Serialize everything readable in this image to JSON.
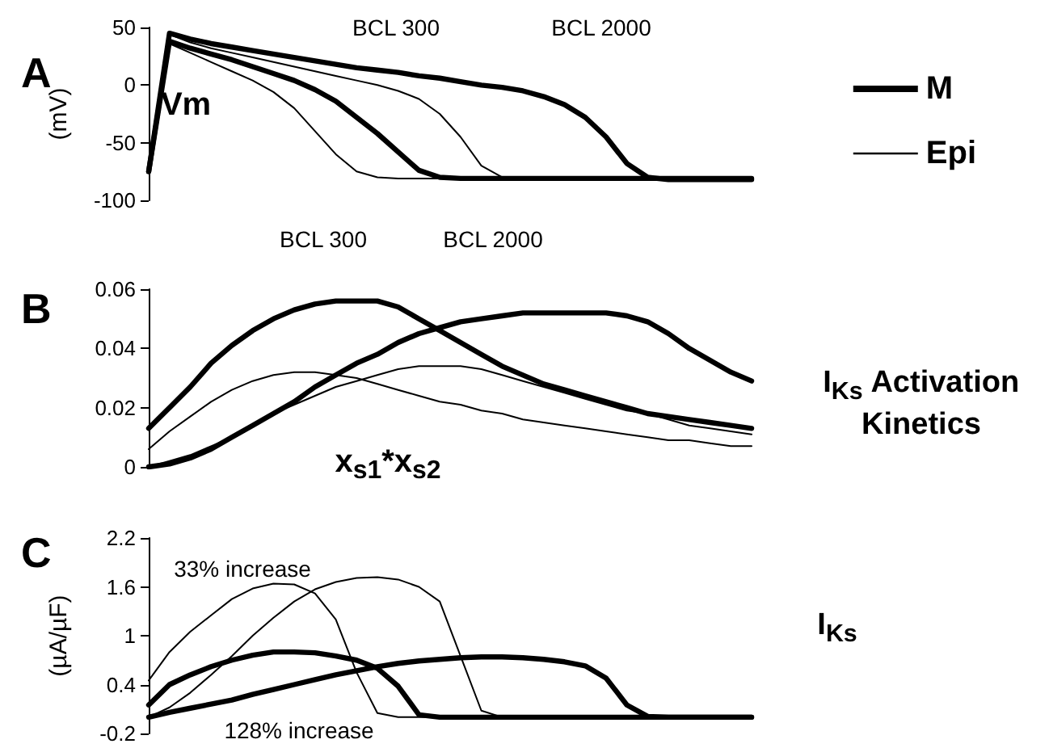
{
  "chart_data": [
    {
      "type": "line",
      "title": "A",
      "ylabel": "(mV)",
      "annotations": [
        "Vm",
        "BCL 300",
        "BCL 2000",
        "BCL 300",
        "BCL 2000"
      ],
      "categories": [
        null,
        null,
        null,
        null,
        null,
        null,
        null,
        null,
        null,
        null,
        null,
        null,
        null,
        null,
        null,
        null,
        null,
        null,
        null,
        null,
        null,
        null,
        null,
        null,
        null,
        null,
        null,
        null,
        null,
        null
      ],
      "ylim": [
        -100,
        50
      ],
      "yticks": [
        -100,
        -50,
        0,
        50
      ],
      "legend": "right",
      "marker": "none",
      "line_style": "solid",
      "series": [
        {
          "name": "M",
          "color": "#000000",
          "values": [
            -75,
            38,
            32,
            27,
            22,
            16,
            10,
            4,
            -4,
            -14,
            -28,
            -42,
            -58,
            -74,
            -80,
            -81,
            -81,
            -81,
            -81,
            -81,
            -81,
            -81,
            -81,
            -81,
            -81,
            -81,
            -81,
            -81,
            -81,
            -81
          ]
        },
        {
          "color": "#000000",
          "values": [
            -75,
            45,
            40,
            36,
            33,
            30,
            27,
            24,
            21,
            18,
            15,
            13,
            11,
            8,
            6,
            3,
            0,
            -2,
            -5,
            -10,
            -17,
            -28,
            -45,
            -68,
            -80,
            -82,
            -82,
            -82,
            -82,
            -82
          ]
        },
        {
          "name": "Epi",
          "color": "#000000",
          "values": [
            -75,
            36,
            28,
            20,
            12,
            4,
            -6,
            -20,
            -40,
            -60,
            -75,
            -80,
            -81,
            -81,
            -81,
            -81,
            -81,
            -81,
            -81,
            -81,
            -81,
            -81,
            -81,
            -81,
            -81,
            -81,
            -81,
            -81,
            -81,
            -81
          ]
        },
        {
          "color": "#000000",
          "values": [
            -75,
            44,
            37,
            32,
            28,
            24,
            20,
            16,
            12,
            8,
            4,
            0,
            -5,
            -12,
            -25,
            -45,
            -70,
            -80,
            -81,
            -81,
            -81,
            -81,
            -81,
            -81,
            -81,
            -81,
            -81,
            -81,
            -81,
            -81
          ]
        }
      ]
    },
    {
      "type": "line",
      "title": "B",
      "annotations": [
        "x$_{s1}$*x$_{s2}$",
        "I$_{Ks}$ Activation Kinetics"
      ],
      "categories": [
        null,
        null,
        null,
        null,
        null,
        null,
        null,
        null,
        null,
        null,
        null,
        null,
        null,
        null,
        null,
        null,
        null,
        null,
        null,
        null,
        null,
        null,
        null,
        null,
        null,
        null,
        null,
        null,
        null,
        null
      ],
      "ylim": [
        0,
        0.06
      ],
      "yticks": [
        0,
        0.02,
        0.04,
        0.06
      ],
      "marker": "none",
      "line_style": "solid",
      "series": [
        {
          "color": "#000000",
          "values": [
            0.013,
            0.02,
            0.027,
            0.035,
            0.041,
            0.046,
            0.05,
            0.053,
            0.055,
            0.056,
            0.056,
            0.056,
            0.054,
            0.05,
            0.046,
            0.042,
            0.038,
            0.034,
            0.031,
            0.028,
            0.026,
            0.024,
            0.022,
            0.02,
            0.018,
            0.017,
            0.016,
            0.015,
            0.014,
            0.013
          ]
        },
        {
          "color": "#000000",
          "values": [
            0,
            0.001,
            0.003,
            0.006,
            0.01,
            0.014,
            0.018,
            0.022,
            0.027,
            0.031,
            0.035,
            0.038,
            0.042,
            0.045,
            0.047,
            0.049,
            0.05,
            0.051,
            0.052,
            0.052,
            0.052,
            0.052,
            0.052,
            0.051,
            0.049,
            0.045,
            0.04,
            0.036,
            0.032,
            0.029
          ]
        },
        {
          "color": "#000000",
          "values": [
            0.006,
            0.012,
            0.017,
            0.022,
            0.026,
            0.029,
            0.031,
            0.032,
            0.032,
            0.031,
            0.03,
            0.028,
            0.026,
            0.024,
            0.022,
            0.021,
            0.019,
            0.018,
            0.016,
            0.015,
            0.014,
            0.013,
            0.012,
            0.011,
            0.01,
            0.009,
            0.009,
            0.008,
            0.007,
            0.007
          ]
        },
        {
          "color": "#000000",
          "values": [
            0,
            0.002,
            0.004,
            0.007,
            0.01,
            0.014,
            0.018,
            0.021,
            0.024,
            0.027,
            0.029,
            0.031,
            0.033,
            0.034,
            0.034,
            0.034,
            0.033,
            0.031,
            0.029,
            0.027,
            0.025,
            0.023,
            0.021,
            0.019,
            0.018,
            0.016,
            0.014,
            0.013,
            0.012,
            0.011
          ]
        }
      ]
    },
    {
      "type": "line",
      "title": "C",
      "ylabel": "(µA/µF)",
      "annotations": [
        "33% increase",
        "128% increase",
        "I$_{Ks}$"
      ],
      "categories": [
        null,
        null,
        null,
        null,
        null,
        null,
        null,
        null,
        null,
        null,
        null,
        null,
        null,
        null,
        null,
        null,
        null,
        null,
        null,
        null,
        null,
        null,
        null,
        null,
        null,
        null,
        null,
        null,
        null,
        null
      ],
      "ylim": [
        -0.2,
        2.2
      ],
      "yticks": [
        -0.2,
        0.4,
        1,
        1.6,
        2.2
      ],
      "marker": "none",
      "line_style": "solid",
      "series": [
        {
          "color": "#000000",
          "values": [
            0.15,
            0.4,
            0.52,
            0.62,
            0.7,
            0.76,
            0.8,
            0.8,
            0.79,
            0.75,
            0.7,
            0.6,
            0.38,
            0.03,
            0,
            0,
            0,
            0,
            0,
            0,
            0,
            0,
            0,
            0,
            0,
            0,
            0,
            0,
            0,
            0
          ]
        },
        {
          "color": "#000000",
          "values": [
            0,
            0.06,
            0.11,
            0.16,
            0.21,
            0.28,
            0.34,
            0.4,
            0.46,
            0.52,
            0.57,
            0.62,
            0.66,
            0.69,
            0.71,
            0.73,
            0.74,
            0.74,
            0.73,
            0.71,
            0.68,
            0.63,
            0.48,
            0.15,
            0.01,
            0,
            0,
            0,
            0,
            0
          ]
        },
        {
          "color": "#000000",
          "values": [
            0.45,
            0.8,
            1.05,
            1.25,
            1.45,
            1.58,
            1.64,
            1.63,
            1.52,
            1.2,
            0.55,
            0.05,
            0,
            0,
            0,
            0,
            0,
            0,
            0,
            0,
            0,
            0,
            0,
            0,
            0,
            0,
            0,
            0,
            0,
            0
          ]
        },
        {
          "color": "#000000",
          "values": [
            0,
            0.12,
            0.3,
            0.52,
            0.75,
            1.0,
            1.22,
            1.42,
            1.57,
            1.66,
            1.71,
            1.72,
            1.69,
            1.6,
            1.42,
            0.75,
            0.08,
            0,
            0,
            0,
            0,
            0,
            0,
            0,
            0,
            0,
            0,
            0,
            0,
            0
          ]
        }
      ]
    }
  ]
}
